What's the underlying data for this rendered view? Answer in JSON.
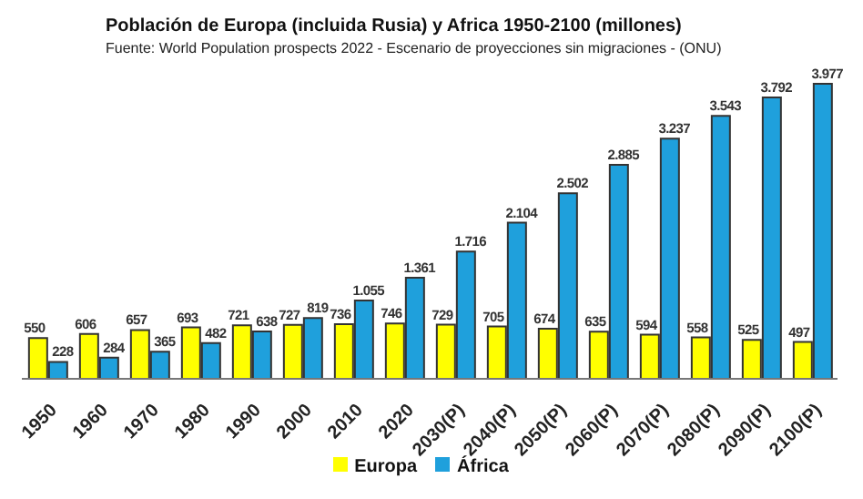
{
  "chart_data": {
    "type": "bar",
    "title": "Población  de Europa  (incluida  Rusia)  y Africa  1950-2100 (millones)",
    "subtitle": "Fuente: World Population prospects 2022 -  Escenario de proyecciones sin migraciones - (ONU)",
    "categories": [
      "1950",
      "1960",
      "1970",
      "1980",
      "1990",
      "2000",
      "2010",
      "2020",
      "2030(P)",
      "2040(P)",
      "2050(P)",
      "2060(P)",
      "2070(P)",
      "2080(P)",
      "2090(P)",
      "2100(P)"
    ],
    "series": [
      {
        "name": "Europa",
        "color": "#ffff00",
        "values": [
          550,
          606,
          657,
          693,
          721,
          727,
          736,
          746,
          729,
          705,
          674,
          635,
          594,
          558,
          525,
          497
        ],
        "value_labels": [
          "550",
          "606",
          "657",
          "693",
          "721",
          "727",
          "736",
          "746",
          "729",
          "705",
          "674",
          "635",
          "594",
          "558",
          "525",
          "497"
        ]
      },
      {
        "name": "África",
        "color": "#1fa0dc",
        "values": [
          228,
          284,
          365,
          482,
          638,
          819,
          1055,
          1361,
          1716,
          2104,
          2502,
          2885,
          3237,
          3543,
          3792,
          3977
        ],
        "value_labels": [
          "228",
          "284",
          "365",
          "482",
          "638",
          "819",
          "1.055",
          "1.361",
          "1.716",
          "2.104",
          "2.502",
          "2.885",
          "3.237",
          "3.543",
          "3.792",
          "3.977"
        ]
      }
    ],
    "legend": "bottom",
    "grid": false
  }
}
